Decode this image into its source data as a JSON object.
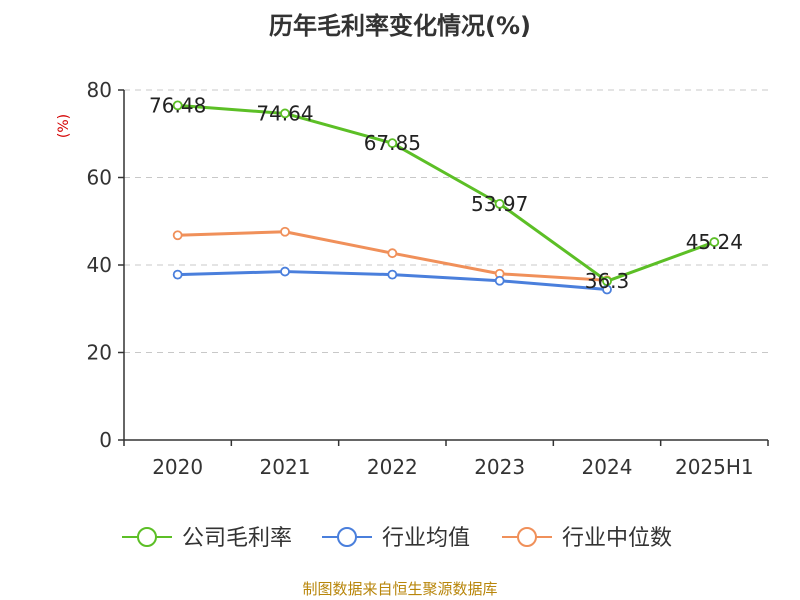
{
  "title": "历年毛利率变化情况(%)",
  "footer": "制图数据来自恒生聚源数据库",
  "colors": {
    "series_green": "#5cbf26",
    "series_blue": "#4a7fdc",
    "series_orange": "#f0905a",
    "axis": "#333333",
    "grid": "#c8c8c8",
    "ylabel": "#d40000",
    "footer": "#b8860b"
  },
  "chart_data": {
    "type": "line",
    "title": "历年毛利率变化情况(%)",
    "xlabel": "",
    "ylabel": "(%)",
    "categories": [
      "2020",
      "2021",
      "2022",
      "2023",
      "2024",
      "2025H1"
    ],
    "ylim": [
      0,
      80
    ],
    "yticks": [
      0,
      20,
      40,
      60,
      80
    ],
    "grid": true,
    "legend_position": "bottom",
    "series": [
      {
        "name": "公司毛利率",
        "color": "#5cbf26",
        "values": [
          76.48,
          74.64,
          67.85,
          53.97,
          36.3,
          45.24
        ],
        "labels": [
          "76.48",
          "74.64",
          "67.85",
          "53.97",
          "36.3",
          "45.24"
        ]
      },
      {
        "name": "行业均值",
        "color": "#4a7fdc",
        "values": [
          37.8,
          38.5,
          37.8,
          36.4,
          34.4,
          null
        ]
      },
      {
        "name": "行业中位数",
        "color": "#f0905a",
        "values": [
          46.8,
          47.6,
          42.7,
          38.0,
          36.5,
          null
        ]
      }
    ]
  }
}
